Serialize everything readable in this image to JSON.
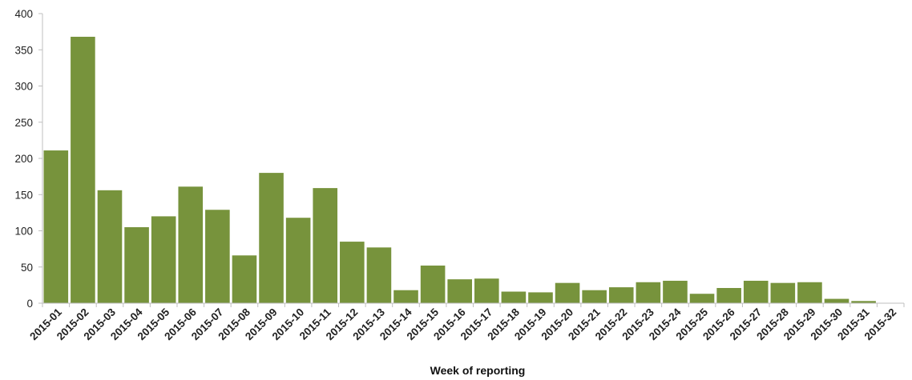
{
  "chart_data": {
    "type": "bar",
    "title": "",
    "xlabel": "Week of reporting",
    "ylabel": "",
    "ylim": [
      0,
      400
    ],
    "yticks": [
      0,
      50,
      100,
      150,
      200,
      250,
      300,
      350,
      400
    ],
    "grid": false,
    "legend": "none",
    "bar_color": "#77933C",
    "categories": [
      "2015-01",
      "2015-02",
      "2015-03",
      "2015-04",
      "2015-05",
      "2015-06",
      "2015-07",
      "2015-08",
      "2015-09",
      "2015-10",
      "2015-11",
      "2015-12",
      "2015-13",
      "2015-14",
      "2015-15",
      "2015-16",
      "2015-17",
      "2015-18",
      "2015-19",
      "2015-20",
      "2015-21",
      "2015-22",
      "2015-23",
      "2015-24",
      "2015-25",
      "2015-26",
      "2015-27",
      "2015-28",
      "2015-29",
      "2015-30",
      "2015-31",
      "2015-32"
    ],
    "values": [
      211,
      368,
      156,
      105,
      120,
      161,
      129,
      66,
      180,
      118,
      159,
      85,
      77,
      18,
      52,
      33,
      34,
      16,
      15,
      28,
      18,
      22,
      29,
      31,
      13,
      21,
      31,
      28,
      29,
      6,
      3,
      0
    ]
  }
}
